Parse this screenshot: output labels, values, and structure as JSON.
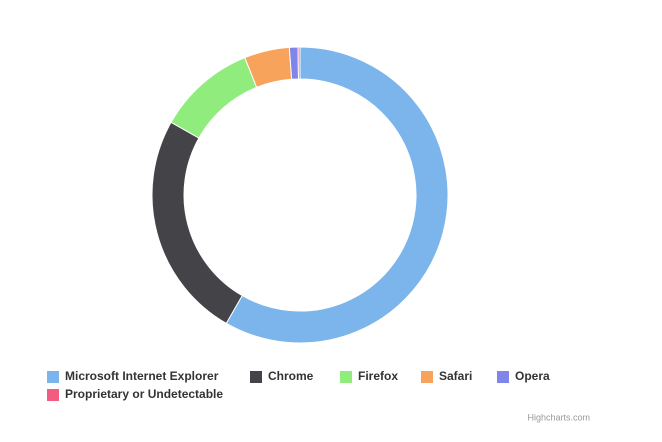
{
  "chart_data": {
    "type": "pie",
    "categories": [
      "Microsoft Internet Explorer",
      "Chrome",
      "Firefox",
      "Safari",
      "Opera",
      "Proprietary or Undetectable"
    ],
    "values": [
      56.33,
      24.03,
      10.38,
      4.77,
      0.91,
      0.2
    ],
    "colors": [
      "#7cb5ec",
      "#434348",
      "#90ed7d",
      "#f7a35c",
      "#8085e9",
      "#f15c80"
    ],
    "legend": "bottom",
    "credits": "Highcharts.com"
  }
}
